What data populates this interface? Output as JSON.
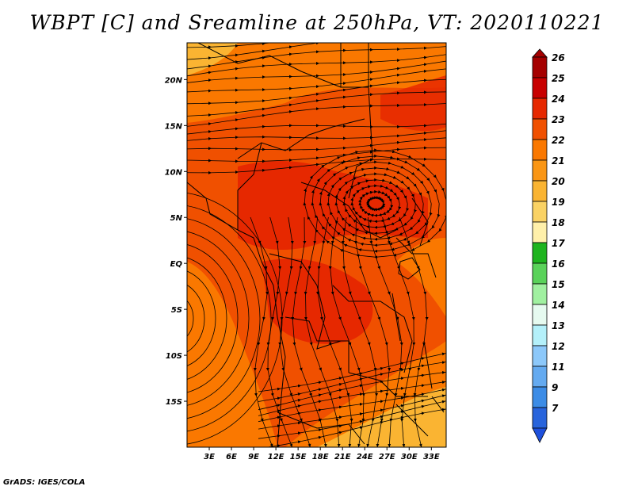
{
  "title": "WBPT [C] and Sreamline at 250hPa, VT: 2020110221",
  "credit": "GrADS: IGES/COLA",
  "map": {
    "lon_range": [
      0,
      35
    ],
    "lat_range": [
      -20,
      24
    ],
    "lon_ticks": [
      {
        "value": 3,
        "label": "3E"
      },
      {
        "value": 6,
        "label": "6E"
      },
      {
        "value": 9,
        "label": "9E"
      },
      {
        "value": 12,
        "label": "12E"
      },
      {
        "value": 15,
        "label": "15E"
      },
      {
        "value": 18,
        "label": "18E"
      },
      {
        "value": 21,
        "label": "21E"
      },
      {
        "value": 24,
        "label": "24E"
      },
      {
        "value": 27,
        "label": "27E"
      },
      {
        "value": 30,
        "label": "30E"
      },
      {
        "value": 33,
        "label": "33E"
      }
    ],
    "lat_ticks": [
      {
        "value": 20,
        "label": "20N"
      },
      {
        "value": 15,
        "label": "15N"
      },
      {
        "value": 10,
        "label": "10N"
      },
      {
        "value": 5,
        "label": "5N"
      },
      {
        "value": 0,
        "label": "EQ"
      },
      {
        "value": -5,
        "label": "5S"
      },
      {
        "value": -10,
        "label": "10S"
      },
      {
        "value": -15,
        "label": "15S"
      }
    ],
    "vortex_center": {
      "lon": 25.5,
      "lat": 6.5
    }
  },
  "colorbar": {
    "levels": [
      {
        "label": "26",
        "color": "#a50000"
      },
      {
        "label": "25",
        "color": "#c80000"
      },
      {
        "label": "24",
        "color": "#e62800"
      },
      {
        "label": "23",
        "color": "#f05000"
      },
      {
        "label": "22",
        "color": "#fa7800"
      },
      {
        "label": "21",
        "color": "#fa9614"
      },
      {
        "label": "20",
        "color": "#fab432"
      },
      {
        "label": "19",
        "color": "#fad264"
      },
      {
        "label": "18",
        "color": "#fff0aa"
      },
      {
        "label": "17",
        "color": "#1eb41e"
      },
      {
        "label": "16",
        "color": "#5ad25a"
      },
      {
        "label": "15",
        "color": "#a0f0a0"
      },
      {
        "label": "14",
        "color": "#e6faf0"
      },
      {
        "label": "13",
        "color": "#b4f0fa"
      },
      {
        "label": "12",
        "color": "#8cc8fa"
      },
      {
        "label": "11",
        "color": "#64aaf0"
      },
      {
        "label": "9",
        "color": "#3c8ce6"
      },
      {
        "label": "7",
        "color": "#2864dc"
      }
    ],
    "bottom_color": "#1e50dc"
  }
}
